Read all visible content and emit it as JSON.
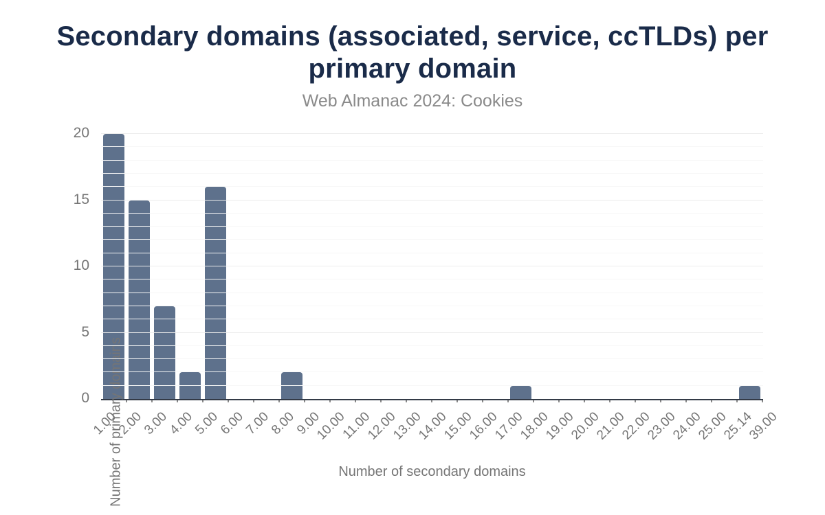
{
  "chart_data": {
    "type": "bar",
    "title": "Secondary domains (associated, service, ccTLDs) per primary domain",
    "subtitle": "Web Almanac 2024: Cookies",
    "xlabel": "Number of secondary domains",
    "ylabel": "Number of primary domains",
    "categories": [
      "1.00",
      "2.00",
      "3.00",
      "4.00",
      "5.00",
      "6.00",
      "7.00",
      "8.00",
      "9.00",
      "10.00",
      "11.00",
      "12.00",
      "13.00",
      "14.00",
      "15.00",
      "16.00",
      "17.00",
      "18.00",
      "19.00",
      "20.00",
      "21.00",
      "22.00",
      "23.00",
      "24.00",
      "25.00",
      "25.14",
      "39.00"
    ],
    "values": [
      20,
      15,
      7,
      2,
      16,
      0,
      0,
      2,
      0,
      0,
      0,
      0,
      0,
      0,
      0,
      0,
      1,
      0,
      0,
      0,
      0,
      0,
      0,
      0,
      0,
      1,
      0
    ],
    "yticks": [
      0,
      5,
      10,
      15,
      20
    ],
    "ylim": [
      0,
      20
    ],
    "grid": "horizontal, minor every 1, major every 5",
    "legend": "none",
    "bar_color": "#5e718c",
    "title_color": "#1a2b49",
    "subtitle_color": "#8a8a8a",
    "axis_text_color": "#757575",
    "axis_line_color": "#333a46"
  }
}
